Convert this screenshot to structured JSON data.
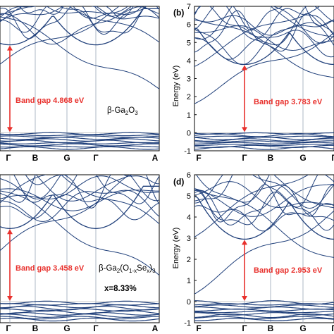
{
  "colors": {
    "band": "#1f3f7a",
    "arrow": "#e8302c",
    "frame": "#000000",
    "divider": "#9aa6b8",
    "fermi": "#b8b8b8"
  },
  "chart_data": [
    {
      "id": "a",
      "type": "line",
      "panel_label": "",
      "ylabel": "",
      "ylim": [
        -1,
        7
      ],
      "yticks": [],
      "x_labels": [
        "Γ",
        "B",
        "G",
        "Γ",
        "A"
      ],
      "gap_label": "Band gap 4.868 eV",
      "cbm": 4.868,
      "vbm": 0,
      "compound": "β-Ga",
      "compound_sub1": "2",
      "compound_mid": "O",
      "compound_sub2": "3",
      "compound_tail": "",
      "composition": ""
    },
    {
      "id": "b",
      "type": "line",
      "panel_label": "(b)",
      "ylabel": "Energy (eV)",
      "ylim": [
        -1,
        7
      ],
      "yticks": [
        "7",
        "6",
        "5",
        "4",
        "3",
        "2",
        "1",
        "0",
        "-1"
      ],
      "x_labels": [
        "F",
        "Γ",
        "B",
        "G",
        "Γ"
      ],
      "gap_label": "Band gap 3.783 eV",
      "cbm": 3.783,
      "vbm": 0,
      "compound": "",
      "composition": ""
    },
    {
      "id": "c",
      "type": "line",
      "panel_label": "",
      "ylabel": "",
      "ylim": [
        -1,
        6
      ],
      "yticks": [],
      "x_labels": [
        "Γ",
        "B",
        "G",
        "Γ",
        "A"
      ],
      "gap_label": "Band gap 3.458 eV",
      "cbm": 3.458,
      "vbm": 0,
      "compound": "β-Ga",
      "compound_sub1": "2",
      "compound_mid": "(O",
      "compound_sub2": "1-x",
      "compound_tail": "Se",
      "compound_sub3": "x",
      "compound_end": ")",
      "compound_sub4": "3",
      "composition": "x=8.33%"
    },
    {
      "id": "d",
      "type": "line",
      "panel_label": "(d)",
      "ylabel": "Energy (eV)",
      "ylim": [
        -1,
        6
      ],
      "yticks": [
        "6",
        "5",
        "4",
        "3",
        "2",
        "1",
        "0",
        "-1"
      ],
      "x_labels": [
        "F",
        "Γ",
        "B",
        "G",
        "Γ"
      ],
      "gap_label": "Band gap 2.953 eV",
      "cbm": 2.953,
      "vbm": 0,
      "compound": "",
      "composition": ""
    }
  ]
}
